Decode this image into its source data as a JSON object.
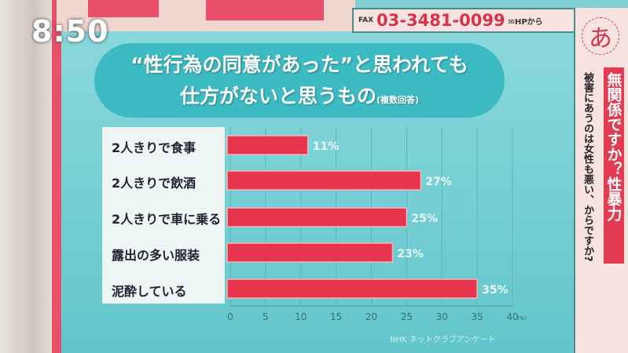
{
  "clock": "8:50",
  "fax": {
    "label": "FAX",
    "number": "03-3481-0099",
    "hp": "✉HPから"
  },
  "side": {
    "logo": "あ",
    "subtitle": "被害にあうのは女性も悪い、からですか?",
    "program": "無関係ですか？性暴力"
  },
  "colors": {
    "bar": "#e8354e",
    "panel": "#7fcfd3",
    "accent": "#d8324a"
  },
  "chart_data": {
    "type": "bar",
    "orientation": "horizontal",
    "title": "“性行為の同意があった”と思われても仕方がないと思うもの",
    "title_line1": "“性行為の同意があった”と思われても",
    "title_line2": "仕方がないと思うもの",
    "title_note": "(複数回答)",
    "categories": [
      "2人きりで食事",
      "2人きりで飲酒",
      "2人きりで車に乗る",
      "露出の多い服装",
      "泥酔している"
    ],
    "values": [
      11,
      27,
      25,
      23,
      35
    ],
    "value_labels": [
      "11%",
      "27%",
      "25%",
      "23%",
      "35%"
    ],
    "xlim": [
      0,
      40
    ],
    "xticks": [
      0,
      5,
      10,
      15,
      20,
      25,
      30,
      35,
      40
    ],
    "xunit": "(%)",
    "grid": true,
    "source": "NHK ネットクラブアンケート"
  }
}
